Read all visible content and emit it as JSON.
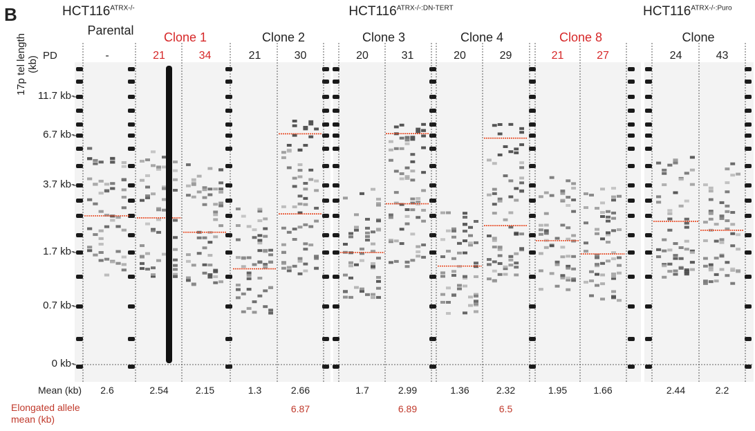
{
  "panel_label": "B",
  "axis": {
    "title": "17p tel length (kb)",
    "pd_label": "PD",
    "ticks": [
      {
        "value": 11.7,
        "label": "11.7 kb-"
      },
      {
        "value": 6.7,
        "label": "6.7 kb-"
      },
      {
        "value": 3.7,
        "label": "3.7 kb-"
      },
      {
        "value": 1.7,
        "label": "1.7 kb-"
      },
      {
        "value": 0.7,
        "label": "0.7 kb-"
      },
      {
        "value": 0,
        "label": "0 kb-"
      }
    ]
  },
  "mean_label": "Mean (kb)",
  "elongated_label": "Elongated allele mean (kb)",
  "mean_line_color": "#e8461e",
  "groups": [
    {
      "name": "HCT116",
      "superscript": "ATRX-/-"
    },
    {
      "name": "HCT116",
      "superscript": "ATRX-/-:DN-TERT"
    },
    {
      "name": "HCT116",
      "superscript": "ATRX-/-:Puro"
    }
  ],
  "clones": [
    {
      "name": "Parental",
      "color": "#222222",
      "lanes": [
        {
          "pd": "-",
          "mean": 2.6
        }
      ]
    },
    {
      "name": "Clone 1",
      "color": "#d62728",
      "lanes": [
        {
          "pd": "21",
          "mean": 2.54
        },
        {
          "pd": "34",
          "mean": 2.15
        }
      ]
    },
    {
      "name": "Clone 2",
      "color": "#222222",
      "lanes": [
        {
          "pd": "21",
          "mean": 1.3
        },
        {
          "pd": "30",
          "mean": 2.66,
          "elongated": 6.87
        }
      ]
    },
    {
      "name": "Clone 3",
      "color": "#222222",
      "lanes": [
        {
          "pd": "20",
          "mean": 1.7
        },
        {
          "pd": "31",
          "mean": 2.99,
          "elongated": 6.89
        }
      ]
    },
    {
      "name": "Clone 4",
      "color": "#222222",
      "lanes": [
        {
          "pd": "20",
          "mean": 1.36
        },
        {
          "pd": "29",
          "mean": 2.32,
          "elongated": 6.5
        }
      ]
    },
    {
      "name": "Clone 8",
      "color": "#d62728",
      "lanes": [
        {
          "pd": "21",
          "mean": 1.95
        },
        {
          "pd": "27",
          "mean": 1.66
        }
      ]
    },
    {
      "name": "Clone",
      "color": "#222222",
      "lanes": [
        {
          "pd": "24",
          "mean": 2.44
        },
        {
          "pd": "43",
          "mean": 2.2
        }
      ]
    }
  ]
}
